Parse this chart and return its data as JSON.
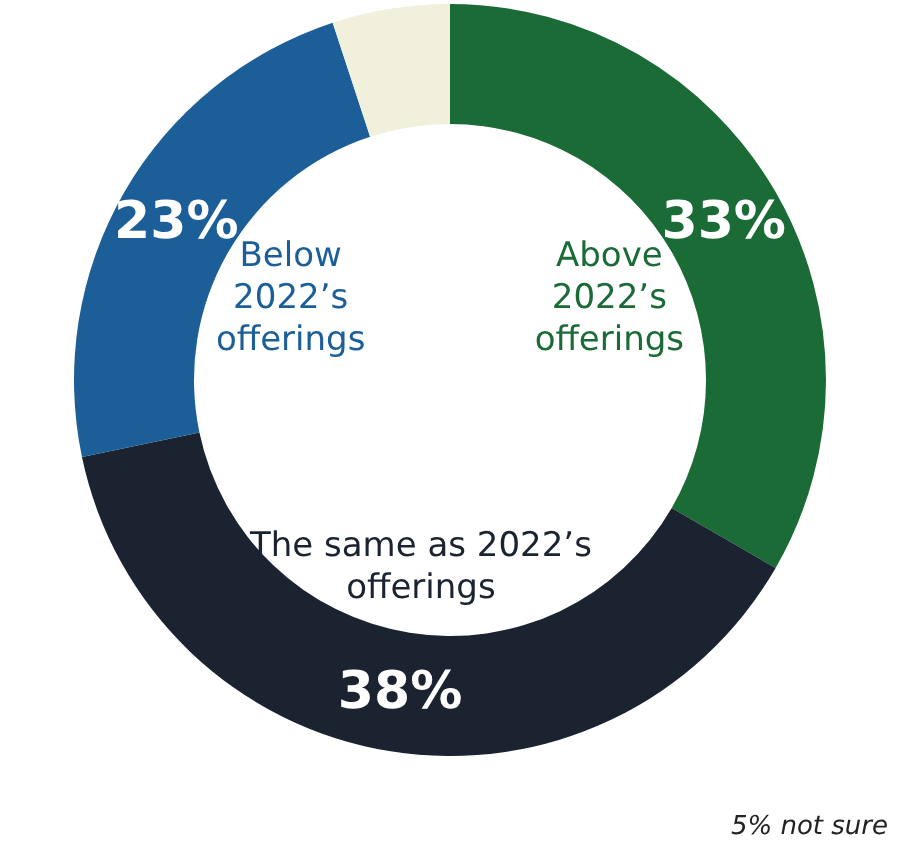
{
  "chart_data": {
    "type": "donut",
    "categories": [
      "Above 2022’s offerings",
      "The same as 2022’s offerings",
      "Below 2022’s offerings",
      null
    ],
    "values": [
      33,
      38,
      23,
      5
    ],
    "colors": [
      "#1b6b37",
      "#1b2331",
      "#1c5f98",
      "#f0f0dc"
    ],
    "value_labels": [
      "33%",
      "38%",
      "23%",
      null
    ],
    "annotations": [
      "5% not sure"
    ]
  }
}
